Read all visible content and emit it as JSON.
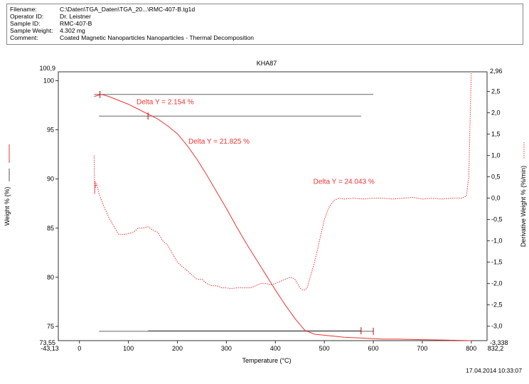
{
  "info": [
    {
      "key": "Filename:",
      "value": "C:\\Daten\\TGA_Daten\\TGA_20...\\RMC-407-B.tg1d"
    },
    {
      "key": "Operator ID:",
      "value": "Dr. Leistner"
    },
    {
      "key": "Sample ID:",
      "value": "RMC-407-B"
    },
    {
      "key": "Sample Weight:",
      "value": "4.302 mg"
    },
    {
      "key": "Comment:",
      "value": "Coated Magnetic Nanoparticles Nanoparticles - Thermal Decomposition"
    }
  ],
  "timestamp": "17.04.2014 10:33:07",
  "chart_data": {
    "type": "line",
    "title": "KHA87",
    "xlabel": "Temperature (°C)",
    "ylabel": "Weight % (%)",
    "y2label": "Derivative Weight % (%/min)",
    "xlim": [
      -43.13,
      832.2
    ],
    "ylim": [
      73.55,
      100.9
    ],
    "y2lim": [
      -3.338,
      2.96
    ],
    "x_ticks": [
      0,
      100,
      200,
      300,
      400,
      500,
      600,
      700,
      800
    ],
    "x_tick_labels": [
      "0",
      "100",
      "200",
      "300",
      "400",
      "500",
      "600",
      "700",
      "800"
    ],
    "x_edge_labels": [
      "-43,13",
      "832,2"
    ],
    "y_ticks": [
      75,
      80,
      85,
      90,
      95,
      100
    ],
    "y_tick_labels": [
      "75",
      "80",
      "85",
      "90",
      "95",
      "100"
    ],
    "y_edge_labels": [
      "73,55",
      "100,9"
    ],
    "y2_ticks": [
      -3.0,
      -2.5,
      -2.0,
      -1.5,
      -1.0,
      -0.5,
      0.0,
      0.5,
      1.0,
      1.5,
      2.0,
      2.5
    ],
    "y2_tick_labels": [
      "-3,0",
      "-2,5",
      "-2,0",
      "-1,5",
      "-1,0",
      "-0,5",
      "0,0",
      "0,5",
      "1,0",
      "1,5",
      "2,0",
      "2,5"
    ],
    "y2_edge_labels": [
      "-3,338",
      "2,96"
    ],
    "grid": false,
    "colors": {
      "weight": "#ee3333",
      "derivative": "#ee3333",
      "step": "#666666",
      "marker": "#cc0000"
    },
    "series": [
      {
        "axis": "left",
        "style": "solid",
        "x": [
          30,
          45,
          60,
          80,
          100,
          120,
          140,
          160,
          180,
          200,
          220,
          240,
          260,
          280,
          300,
          320,
          340,
          360,
          380,
          400,
          420,
          440,
          460,
          480,
          490,
          500,
          510,
          520,
          540,
          560,
          580,
          600,
          620,
          650,
          700,
          750,
          800
        ],
        "y": [
          98.4,
          98.6,
          98.4,
          98.0,
          97.6,
          97.1,
          96.6,
          96.1,
          95.4,
          94.6,
          93.4,
          92.0,
          90.4,
          88.7,
          87.0,
          85.2,
          83.5,
          81.9,
          80.3,
          78.7,
          77.2,
          75.8,
          74.6,
          74.2,
          74.15,
          74.1,
          74.05,
          74.0,
          73.9,
          73.85,
          73.8,
          73.75,
          73.7,
          73.7,
          73.65,
          73.6,
          73.55
        ]
      },
      {
        "axis": "right",
        "style": "dotted",
        "x": [
          30,
          31,
          32,
          33,
          35,
          40,
          50,
          60,
          70,
          80,
          90,
          100,
          110,
          120,
          130,
          140,
          150,
          160,
          170,
          180,
          190,
          200,
          210,
          220,
          230,
          240,
          250,
          260,
          270,
          280,
          290,
          300,
          310,
          320,
          330,
          340,
          350,
          360,
          370,
          380,
          390,
          400,
          410,
          420,
          430,
          440,
          450,
          455,
          460,
          465,
          470,
          480,
          490,
          500,
          510,
          520,
          530,
          540,
          560,
          580,
          600,
          620,
          640,
          660,
          680,
          700,
          720,
          740,
          760,
          780,
          790,
          795,
          798,
          800
        ],
        "y": [
          1.0,
          0.1,
          0.4,
          0.25,
          0.35,
          0.1,
          -0.2,
          -0.45,
          -0.65,
          -0.85,
          -0.85,
          -0.83,
          -0.8,
          -0.7,
          -0.7,
          -0.67,
          -0.75,
          -0.8,
          -1.0,
          -1.1,
          -1.3,
          -1.5,
          -1.6,
          -1.7,
          -1.8,
          -1.9,
          -1.9,
          -2.0,
          -2.05,
          -2.05,
          -2.1,
          -2.1,
          -2.12,
          -2.1,
          -2.1,
          -2.1,
          -2.1,
          -2.05,
          -2.0,
          -2.0,
          -2.03,
          -2.0,
          -1.95,
          -1.9,
          -1.85,
          -1.9,
          -2.1,
          -2.15,
          -2.15,
          -2.1,
          -1.9,
          -1.5,
          -1.0,
          -0.5,
          -0.2,
          -0.05,
          0.0,
          -0.02,
          0.0,
          -0.02,
          0.0,
          0.0,
          -0.02,
          0.0,
          0.02,
          -0.02,
          0.0,
          -0.02,
          0.0,
          0.0,
          0.05,
          0.5,
          2.0,
          2.96
        ]
      }
    ],
    "step_lines": [
      {
        "x1": 30,
        "x2": 600,
        "y": 98.6
      },
      {
        "x1": 40,
        "x2": 575,
        "y": 96.4
      },
      {
        "x1": 40,
        "x2": 600,
        "y": 74.5
      },
      {
        "x1": 140,
        "x2": 575,
        "y": 74.55
      }
    ],
    "markers": [
      {
        "x": 42,
        "y": 98.6
      },
      {
        "x": 140,
        "y": 96.4
      },
      {
        "x": 575,
        "y": 74.55
      },
      {
        "x": 600,
        "y": 74.5
      }
    ],
    "annotations": [
      {
        "text": "Delta Y = 2.154 %",
        "x": 175,
        "y": 97.6
      },
      {
        "text": "Delta Y = 21.825 %",
        "x": 285,
        "y": 93.6
      },
      {
        "text": "Delta Y = 24.043 %",
        "x": 540,
        "y": 89.5
      }
    ]
  }
}
